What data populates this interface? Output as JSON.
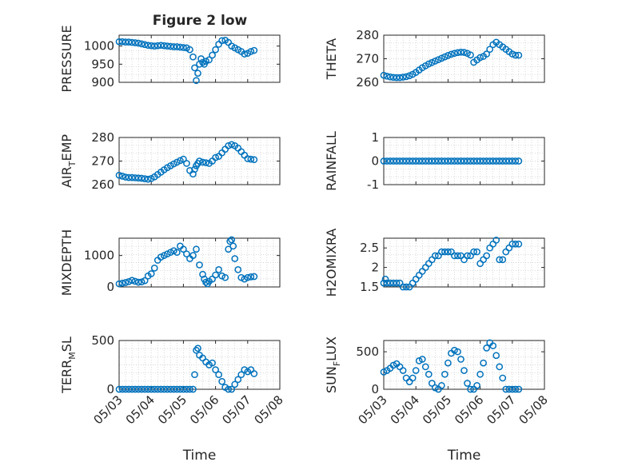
{
  "figure_title": "Figure 2 low",
  "colors": {
    "marker": "#0072BD",
    "axis": "#262626",
    "grid": "#c8c8c8",
    "background": "#ffffff"
  },
  "chart_data": [
    {
      "type": "scatter",
      "ylabel": "PRESSURE",
      "title": "Figure 2 low",
      "xlim": [
        0,
        5
      ],
      "ylim": [
        900,
        1030
      ],
      "yticks": [
        900,
        950,
        1000
      ],
      "ytick_labels": [
        "900",
        "950",
        "1000"
      ],
      "xtick_labels": [
        "05/03",
        "05/04",
        "05/05",
        "05/06",
        "05/07",
        "05/08"
      ],
      "show_xticklabels": false,
      "xlabel": "",
      "grid": true,
      "marker": "open-circle",
      "series": [
        {
          "x": [
            0,
            0.1,
            0.2,
            0.3,
            0.4,
            0.5,
            0.6,
            0.7,
            0.8,
            0.9,
            1.0,
            1.1,
            1.2,
            1.3,
            1.4,
            1.5,
            1.6,
            1.7,
            1.8,
            1.9,
            2.0,
            2.1,
            2.2,
            2.3,
            2.35,
            2.4,
            2.45,
            2.5,
            2.55,
            2.6,
            2.65,
            2.7,
            2.8,
            2.9,
            3.0,
            3.1,
            3.2,
            3.3,
            3.4,
            3.5,
            3.6,
            3.7,
            3.8,
            3.9,
            4.0,
            4.1,
            4.2
          ],
          "y": [
            1012,
            1012,
            1011,
            1011,
            1010,
            1009,
            1008,
            1006,
            1004,
            1002,
            1001,
            1000,
            1001,
            1002,
            1001,
            1000,
            999,
            998,
            998,
            997,
            996,
            995,
            990,
            970,
            940,
            905,
            925,
            950,
            965,
            955,
            950,
            958,
            962,
            975,
            990,
            1005,
            1015,
            1016,
            1010,
            1000,
            995,
            990,
            985,
            978,
            980,
            985,
            988
          ]
        }
      ]
    },
    {
      "type": "scatter",
      "ylabel": "THETA",
      "xlim": [
        0,
        5
      ],
      "ylim": [
        260,
        280
      ],
      "yticks": [
        260,
        270,
        280
      ],
      "ytick_labels": [
        "260",
        "270",
        "280"
      ],
      "xtick_labels": [
        "05/03",
        "05/04",
        "05/05",
        "05/06",
        "05/07",
        "05/08"
      ],
      "show_xticklabels": false,
      "xlabel": "",
      "grid": true,
      "marker": "open-circle",
      "series": [
        {
          "x": [
            0,
            0.1,
            0.2,
            0.3,
            0.4,
            0.5,
            0.6,
            0.7,
            0.8,
            0.9,
            1.0,
            1.1,
            1.2,
            1.3,
            1.4,
            1.5,
            1.6,
            1.7,
            1.8,
            1.9,
            2.0,
            2.1,
            2.2,
            2.3,
            2.4,
            2.5,
            2.6,
            2.7,
            2.8,
            2.9,
            3.0,
            3.1,
            3.2,
            3.3,
            3.4,
            3.5,
            3.6,
            3.7,
            3.8,
            3.9,
            4.0,
            4.1,
            4.2
          ],
          "y": [
            263,
            262.6,
            262.3,
            262.1,
            262.0,
            262.0,
            262.2,
            262.4,
            262.8,
            263.4,
            264.2,
            265.2,
            266.2,
            267.0,
            267.8,
            268.4,
            269.0,
            269.6,
            270.2,
            270.8,
            271.4,
            271.9,
            272.3,
            272.6,
            272.8,
            272.7,
            272.3,
            271.6,
            268.5,
            269.5,
            270.5,
            271.0,
            272.0,
            274.0,
            276.0,
            277.0,
            276.0,
            275.0,
            274.0,
            273.0,
            272.0,
            271.5,
            271.5
          ]
        }
      ]
    },
    {
      "type": "scatter",
      "ylabel": "AIR_TEMP",
      "ylabel_main": "AIR",
      "ylabel_sub": "T",
      "ylabel_tail": "EMP",
      "xlim": [
        0,
        5
      ],
      "ylim": [
        260,
        280
      ],
      "yticks": [
        260,
        270,
        280
      ],
      "ytick_labels": [
        "260",
        "270",
        "280"
      ],
      "xtick_labels": [
        "05/03",
        "05/04",
        "05/05",
        "05/06",
        "05/07",
        "05/08"
      ],
      "show_xticklabels": false,
      "xlabel": "",
      "grid": true,
      "marker": "open-circle",
      "series": [
        {
          "x": [
            0,
            0.1,
            0.2,
            0.3,
            0.4,
            0.5,
            0.6,
            0.7,
            0.8,
            0.9,
            1.0,
            1.1,
            1.2,
            1.3,
            1.4,
            1.5,
            1.6,
            1.7,
            1.8,
            1.9,
            2.0,
            2.1,
            2.2,
            2.3,
            2.35,
            2.4,
            2.45,
            2.5,
            2.6,
            2.7,
            2.8,
            2.9,
            3.0,
            3.1,
            3.2,
            3.3,
            3.4,
            3.5,
            3.6,
            3.7,
            3.8,
            3.9,
            4.0,
            4.1,
            4.2
          ],
          "y": [
            264.0,
            263.6,
            263.2,
            263.0,
            263.0,
            262.9,
            262.8,
            262.7,
            262.5,
            262.3,
            262.6,
            263.3,
            264.3,
            265.3,
            266.3,
            267.2,
            268.0,
            268.8,
            269.5,
            270.2,
            270.8,
            269.0,
            266.0,
            264.5,
            266.5,
            268.0,
            269.0,
            270.0,
            269.5,
            269.3,
            269.0,
            270.0,
            271.5,
            272.0,
            273.5,
            275.0,
            276.5,
            277.0,
            276.5,
            275.5,
            274.0,
            272.5,
            271.0,
            270.8,
            270.6
          ]
        }
      ]
    },
    {
      "type": "scatter",
      "ylabel": "RAINFALL",
      "xlim": [
        0,
        5
      ],
      "ylim": [
        -1,
        1
      ],
      "yticks": [
        -1,
        0,
        1
      ],
      "ytick_labels": [
        "-1",
        "0",
        "1"
      ],
      "xtick_labels": [
        "05/03",
        "05/04",
        "05/05",
        "05/06",
        "05/07",
        "05/08"
      ],
      "show_xticklabels": false,
      "xlabel": "",
      "grid": true,
      "marker": "open-circle",
      "series": [
        {
          "x": [
            0,
            0.1,
            0.2,
            0.3,
            0.4,
            0.5,
            0.6,
            0.7,
            0.8,
            0.9,
            1.0,
            1.1,
            1.2,
            1.3,
            1.4,
            1.5,
            1.6,
            1.7,
            1.8,
            1.9,
            2.0,
            2.1,
            2.2,
            2.3,
            2.4,
            2.5,
            2.6,
            2.7,
            2.8,
            2.9,
            3.0,
            3.1,
            3.2,
            3.3,
            3.4,
            3.5,
            3.6,
            3.7,
            3.8,
            3.9,
            4.0,
            4.1,
            4.2
          ],
          "y": [
            0,
            0,
            0,
            0,
            0,
            0,
            0,
            0,
            0,
            0,
            0,
            0,
            0,
            0,
            0,
            0,
            0,
            0,
            0,
            0,
            0,
            0,
            0,
            0,
            0,
            0,
            0,
            0,
            0,
            0,
            0,
            0,
            0,
            0,
            0,
            0,
            0,
            0,
            0,
            0,
            0,
            0,
            0
          ]
        }
      ]
    },
    {
      "type": "scatter",
      "ylabel": "MIXDEPTH",
      "xlim": [
        0,
        5
      ],
      "ylim": [
        0,
        1550
      ],
      "yticks": [
        0,
        1000
      ],
      "ytick_labels": [
        "0",
        "1000"
      ],
      "xtick_labels": [
        "05/03",
        "05/04",
        "05/05",
        "05/06",
        "05/07",
        "05/08"
      ],
      "show_xticklabels": false,
      "xlabel": "",
      "grid": true,
      "marker": "open-circle",
      "series": [
        {
          "x": [
            0,
            0.1,
            0.2,
            0.3,
            0.4,
            0.5,
            0.6,
            0.7,
            0.8,
            0.9,
            1.0,
            1.1,
            1.2,
            1.3,
            1.4,
            1.5,
            1.6,
            1.7,
            1.8,
            1.9,
            2.0,
            2.1,
            2.2,
            2.3,
            2.4,
            2.5,
            2.6,
            2.65,
            2.7,
            2.75,
            2.8,
            2.9,
            3.0,
            3.1,
            3.2,
            3.3,
            3.4,
            3.45,
            3.5,
            3.55,
            3.6,
            3.7,
            3.8,
            3.9,
            4.0,
            4.1,
            4.2
          ],
          "y": [
            100,
            120,
            140,
            170,
            210,
            180,
            150,
            160,
            200,
            350,
            420,
            600,
            850,
            950,
            1000,
            1050,
            1100,
            1150,
            1100,
            1300,
            1200,
            1050,
            900,
            1000,
            1200,
            700,
            400,
            250,
            150,
            100,
            180,
            250,
            380,
            550,
            350,
            300,
            1200,
            1450,
            1500,
            1300,
            900,
            550,
            300,
            250,
            300,
            320,
            330
          ]
        }
      ]
    },
    {
      "type": "scatter",
      "ylabel": "H2OMIXRA",
      "xlim": [
        0,
        5
      ],
      "ylim": [
        1.5,
        2.75
      ],
      "yticks": [
        1.5,
        2,
        2.5
      ],
      "ytick_labels": [
        "1.5",
        "2",
        "2.5"
      ],
      "xtick_labels": [
        "05/03",
        "05/04",
        "05/05",
        "05/06",
        "05/07",
        "05/08"
      ],
      "show_xticklabels": false,
      "xlabel": "",
      "grid": true,
      "marker": "open-circle",
      "series": [
        {
          "x": [
            0,
            0.05,
            0.1,
            0.2,
            0.3,
            0.4,
            0.5,
            0.6,
            0.7,
            0.8,
            0.9,
            1.0,
            1.1,
            1.2,
            1.3,
            1.4,
            1.5,
            1.6,
            1.7,
            1.8,
            1.9,
            2.0,
            2.1,
            2.2,
            2.3,
            2.4,
            2.5,
            2.6,
            2.7,
            2.8,
            2.9,
            3.0,
            3.1,
            3.2,
            3.3,
            3.4,
            3.5,
            3.6,
            3.7,
            3.8,
            3.9,
            4.0,
            4.1,
            4.2
          ],
          "y": [
            1.6,
            1.7,
            1.6,
            1.6,
            1.6,
            1.6,
            1.6,
            1.5,
            1.5,
            1.5,
            1.6,
            1.7,
            1.8,
            1.9,
            2.0,
            2.1,
            2.2,
            2.3,
            2.3,
            2.4,
            2.4,
            2.4,
            2.4,
            2.3,
            2.3,
            2.3,
            2.2,
            2.3,
            2.3,
            2.4,
            2.4,
            2.1,
            2.2,
            2.3,
            2.5,
            2.6,
            2.7,
            2.2,
            2.2,
            2.4,
            2.5,
            2.6,
            2.6,
            2.6
          ]
        }
      ]
    },
    {
      "type": "scatter",
      "ylabel": "TERR_MSL",
      "ylabel_main": "TERR",
      "ylabel_sub": "M",
      "ylabel_tail": "SL",
      "xlim": [
        0,
        5
      ],
      "ylim": [
        0,
        500
      ],
      "yticks": [
        0,
        500
      ],
      "ytick_labels": [
        "0",
        "500"
      ],
      "xtick_labels": [
        "05/03",
        "05/04",
        "05/05",
        "05/06",
        "05/07",
        "05/08"
      ],
      "show_xticklabels": true,
      "xlabel": "Time",
      "grid": true,
      "marker": "open-circle",
      "series": [
        {
          "x": [
            0,
            0.1,
            0.2,
            0.3,
            0.4,
            0.5,
            0.6,
            0.7,
            0.8,
            0.9,
            1.0,
            1.1,
            1.2,
            1.3,
            1.4,
            1.5,
            1.6,
            1.7,
            1.8,
            1.9,
            2.0,
            2.1,
            2.2,
            2.3,
            2.35,
            2.4,
            2.45,
            2.5,
            2.6,
            2.7,
            2.8,
            2.9,
            3.0,
            3.1,
            3.2,
            3.3,
            3.4,
            3.5,
            3.6,
            3.7,
            3.8,
            3.9,
            4.0,
            4.1,
            4.2
          ],
          "y": [
            0,
            0,
            0,
            0,
            0,
            0,
            0,
            0,
            0,
            0,
            0,
            0,
            0,
            0,
            0,
            0,
            0,
            0,
            0,
            0,
            0,
            0,
            0,
            0,
            150,
            400,
            420,
            350,
            320,
            280,
            250,
            270,
            200,
            150,
            80,
            20,
            0,
            0,
            50,
            100,
            150,
            200,
            180,
            200,
            160
          ]
        }
      ]
    },
    {
      "type": "scatter",
      "ylabel": "SUN_FLUX",
      "ylabel_main": "SUN",
      "ylabel_sub": "F",
      "ylabel_tail": "LUX",
      "xlim": [
        0,
        5
      ],
      "ylim": [
        0,
        650
      ],
      "yticks": [
        0,
        500
      ],
      "ytick_labels": [
        "0",
        "500"
      ],
      "xtick_labels": [
        "05/03",
        "05/04",
        "05/05",
        "05/06",
        "05/07",
        "05/08"
      ],
      "show_xticklabels": true,
      "xlabel": "Time",
      "grid": true,
      "marker": "open-circle",
      "series": [
        {
          "x": [
            0,
            0.1,
            0.2,
            0.3,
            0.4,
            0.5,
            0.6,
            0.7,
            0.8,
            0.9,
            1.0,
            1.1,
            1.2,
            1.3,
            1.4,
            1.5,
            1.6,
            1.7,
            1.8,
            1.9,
            2.0,
            2.1,
            2.2,
            2.3,
            2.4,
            2.5,
            2.6,
            2.7,
            2.8,
            2.9,
            3.0,
            3.1,
            3.2,
            3.3,
            3.4,
            3.5,
            3.6,
            3.7,
            3.8,
            3.9,
            4.0,
            4.1,
            4.2
          ],
          "y": [
            230,
            250,
            280,
            320,
            340,
            300,
            250,
            150,
            100,
            150,
            250,
            380,
            400,
            300,
            200,
            80,
            20,
            0,
            50,
            200,
            350,
            480,
            520,
            500,
            400,
            250,
            80,
            0,
            0,
            50,
            200,
            350,
            550,
            620,
            580,
            450,
            300,
            150,
            0,
            0,
            0,
            0,
            0
          ]
        }
      ]
    }
  ]
}
